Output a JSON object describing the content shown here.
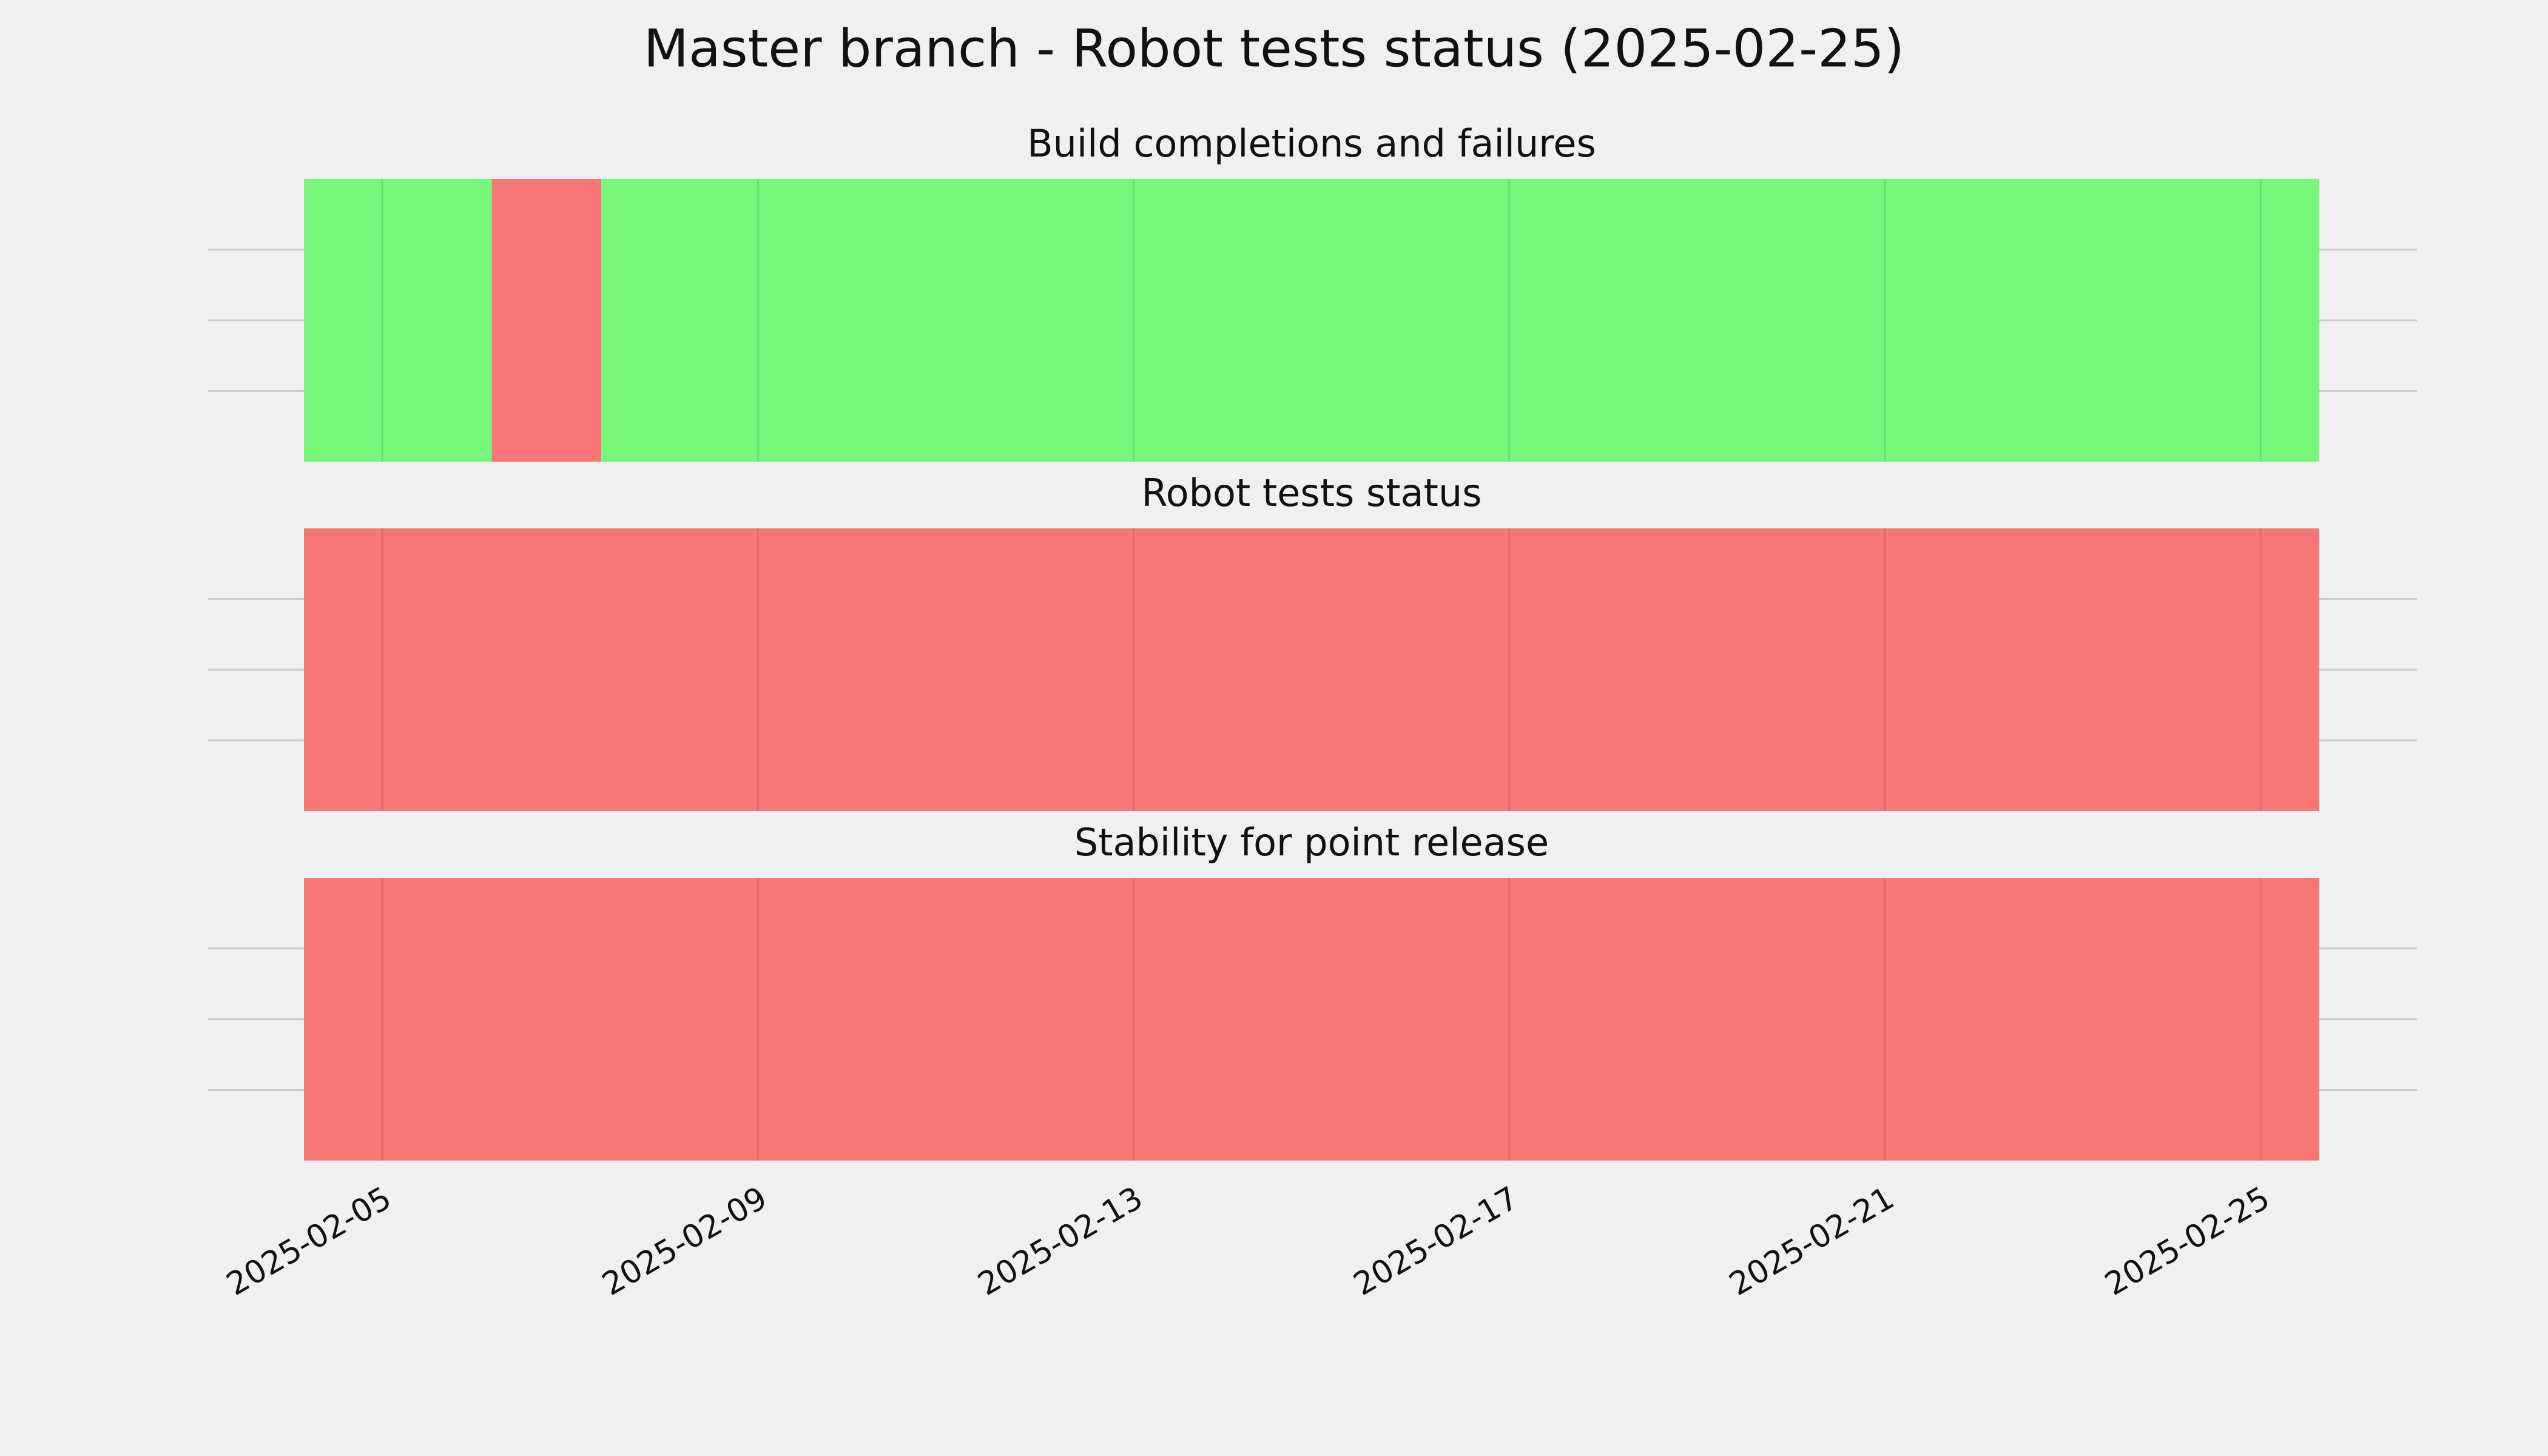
{
  "chart_data": {
    "type": "timeline",
    "title": "Master branch - Robot tests status (2025-02-25)",
    "xlim": [
      "2025-02-04T04:00",
      "2025-02-25T15:00"
    ],
    "xticks": [
      "2025-02-05",
      "2025-02-09",
      "2025-02-13",
      "2025-02-17",
      "2025-02-21",
      "2025-02-25"
    ],
    "grid": true,
    "panels": [
      {
        "title": "Build completions and failures",
        "spans": [
          {
            "start": "2025-02-04T04:00",
            "end": "2025-02-06T04:00",
            "color": "#76f77a"
          },
          {
            "start": "2025-02-06T04:00",
            "end": "2025-02-07T08:00",
            "color": "#f77676"
          },
          {
            "start": "2025-02-07T08:00",
            "end": "2025-02-25T15:00",
            "color": "#76f77a"
          }
        ]
      },
      {
        "title": "Robot tests status",
        "spans": [
          {
            "start": "2025-02-04T04:00",
            "end": "2025-02-25T15:00",
            "color": "#f77676"
          }
        ]
      },
      {
        "title": "Stability for point release",
        "spans": [
          {
            "start": "2025-02-04T04:00",
            "end": "2025-02-25T15:00",
            "color": "#f77676"
          }
        ]
      }
    ]
  }
}
